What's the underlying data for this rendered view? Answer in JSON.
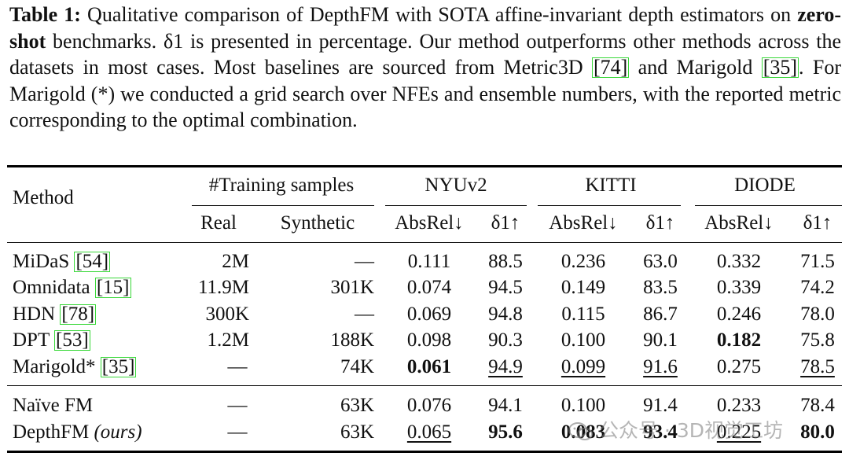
{
  "caption": {
    "label": "Table 1:",
    "text_1": " Qualitative comparison of DepthFM with SOTA affine-invariant depth estimators on ",
    "bold_term": "zero-shot",
    "text_2": " benchmarks. δ1 is presented in percentage. Our method outperforms other methods across the datasets in most cases. Most baselines are sourced from Metric3D ",
    "cite_1": "[74]",
    "text_3": " and Marigold ",
    "cite_2": "[35]",
    "text_4": ". For Marigold (*) we conducted a grid search over NFEs and ensemble numbers, with the reported metric corresponding to the optimal combination."
  },
  "header": {
    "method": "Method",
    "training": "#Training samples",
    "nyu": "NYUv2",
    "kitti": "KITTI",
    "diode": "DIODE",
    "real": "Real",
    "synthetic": "Synthetic",
    "absrel": "AbsRel↓",
    "delta": "δ1↑"
  },
  "rows": [
    {
      "method": "MiDaS ",
      "cite": "[54]",
      "real": "2M",
      "synthetic": "—",
      "nyu_absrel": "0.111",
      "nyu_d1": "88.5",
      "kitti_absrel": "0.236",
      "kitti_d1": "63.0",
      "diode_absrel": "0.332",
      "diode_d1": "71.5"
    },
    {
      "method": "Omnidata ",
      "cite": "[15]",
      "real": "11.9M",
      "synthetic": "301K",
      "nyu_absrel": "0.074",
      "nyu_d1": "94.5",
      "kitti_absrel": "0.149",
      "kitti_d1": "83.5",
      "diode_absrel": "0.339",
      "diode_d1": "74.2"
    },
    {
      "method": "HDN ",
      "cite": "[78]",
      "real": "300K",
      "synthetic": "—",
      "nyu_absrel": "0.069",
      "nyu_d1": "94.8",
      "kitti_absrel": "0.115",
      "kitti_d1": "86.7",
      "diode_absrel": "0.246",
      "diode_d1": "78.0"
    },
    {
      "method": "DPT ",
      "cite": "[53]",
      "real": "1.2M",
      "synthetic": "188K",
      "nyu_absrel": "0.098",
      "nyu_d1": "90.3",
      "kitti_absrel": "0.100",
      "kitti_d1": "90.1",
      "diode_absrel": "0.182",
      "diode_d1": "75.8"
    },
    {
      "method": "Marigold* ",
      "cite": "[35]",
      "real": "—",
      "synthetic": "74K",
      "nyu_absrel": "0.061",
      "nyu_d1": "94.9",
      "kitti_absrel": "0.099",
      "kitti_d1": "91.6",
      "diode_absrel": "0.275",
      "diode_d1": "78.5"
    },
    {
      "method": "Naïve FM",
      "cite": "",
      "real": "—",
      "synthetic": "63K",
      "nyu_absrel": "0.076",
      "nyu_d1": "94.1",
      "kitti_absrel": "0.100",
      "kitti_d1": "91.4",
      "diode_absrel": "0.233",
      "diode_d1": "78.4"
    },
    {
      "method": "DepthFM ",
      "method_italic": "(ours)",
      "cite": "",
      "real": "—",
      "synthetic": "63K",
      "nyu_absrel": "0.065",
      "nyu_d1": "95.6",
      "kitti_absrel": "0.083",
      "kitti_d1": "93.4",
      "diode_absrel": "0.225",
      "diode_d1": "80.0"
    }
  ],
  "watermark": "公众号 · 3D视觉工坊",
  "colors": {
    "cite_box": "#39d839"
  }
}
